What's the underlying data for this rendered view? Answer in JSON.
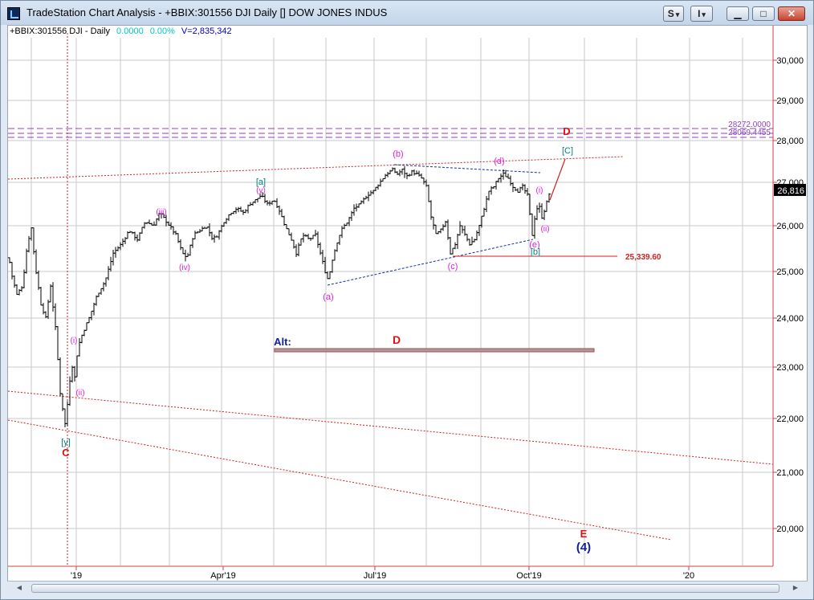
{
  "window": {
    "title": "TradeStation Chart Analysis - +BBIX:301556 DJI Daily [] DOW JONES INDUS",
    "btn_s": "S",
    "btn_i": "I",
    "dropdown_glyph": "▾",
    "minimize": "▁",
    "maximize": "□",
    "close": "✕"
  },
  "info": {
    "symbol": "+BBIX:301556 DJI - Daily",
    "change": "0.0000",
    "change_pct": "0.00%",
    "volume": "V=2,835,342",
    "change_color": "#00c8c8",
    "volume_color": "#0000c0"
  },
  "chart_data": {
    "type": "bar",
    "y_axis_labels": [
      "30,000",
      "29,000",
      "28,000",
      "27,000",
      "26,000",
      "25,000",
      "24,000",
      "23,000",
      "22,000",
      "21,000",
      "20,000"
    ],
    "y_axis_values": [
      30000,
      29000,
      28000,
      27000,
      26000,
      25000,
      24000,
      23000,
      22000,
      21000,
      20000
    ],
    "x_axis_labels": [
      "'19",
      "Apr'19",
      "Jul'19",
      "Oct'19",
      "'20"
    ],
    "last_price": "26,816",
    "ylim": [
      19300,
      30600
    ],
    "level_lines": [
      {
        "label": "28272.0000",
        "value": 28272
      },
      {
        "label": "28069.4455",
        "value": 28069
      }
    ],
    "support_label": "25,339.60",
    "support_value": 25339.6,
    "price_color": "#000000",
    "wave_color": "#e020e0",
    "bracket_color": "#008080",
    "major_color": "#e01010",
    "alt_color": "#1020a0",
    "wave_labels": [
      {
        "text": "(i)",
        "color": "#e020e0"
      },
      {
        "text": "(ii)",
        "color": "#e020e0"
      },
      {
        "text": "(iii)",
        "color": "#e020e0"
      },
      {
        "text": "(iv)",
        "color": "#e020e0"
      },
      {
        "text": "(v)",
        "color": "#e020e0"
      },
      {
        "text": "[a]",
        "color": "#008080"
      },
      {
        "text": "(a)",
        "color": "#e020e0"
      },
      {
        "text": "(b)",
        "color": "#e020e0"
      },
      {
        "text": "(c)",
        "color": "#e020e0"
      },
      {
        "text": "(d)",
        "color": "#e020e0"
      },
      {
        "text": "(e)",
        "color": "#e020e0"
      },
      {
        "text": "[b]",
        "color": "#008080"
      },
      {
        "text": "(i)",
        "color": "#e020e0"
      },
      {
        "text": "(ii)",
        "color": "#e020e0"
      },
      {
        "text": "[C]",
        "color": "#008080"
      },
      {
        "text": "D",
        "color": "#e01010"
      },
      {
        "text": "[y]",
        "color": "#008080"
      },
      {
        "text": "C",
        "color": "#e01010"
      },
      {
        "text": "Alt:",
        "color": "#1020a0"
      },
      {
        "text": "D",
        "color": "#e01010"
      },
      {
        "text": "E",
        "color": "#e01010"
      },
      {
        "text": "(4)",
        "color": "#1020a0"
      }
    ]
  }
}
